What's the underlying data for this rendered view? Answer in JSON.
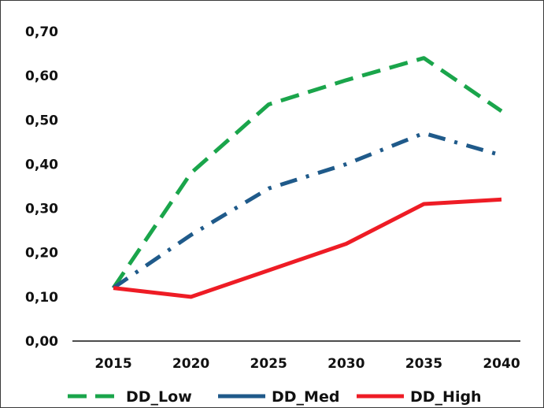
{
  "chart_data": {
    "type": "line",
    "title": "",
    "xlabel": "",
    "ylabel": "",
    "x": [
      "2015",
      "2020",
      "2025",
      "2030",
      "2035",
      "2040"
    ],
    "ylim": [
      0,
      0.7
    ],
    "y_ticks": [
      "0,00",
      "0,10",
      "0,20",
      "0,30",
      "0,40",
      "0,50",
      "0,60",
      "0,70"
    ],
    "grid": false,
    "legend_position": "bottom",
    "series": [
      {
        "name": "DD_Low",
        "values": [
          0.12,
          0.38,
          0.535,
          0.59,
          0.64,
          0.52
        ],
        "color": "#1aa54b",
        "dash": "dashed"
      },
      {
        "name": "DD_Med",
        "values": [
          0.12,
          0.24,
          0.345,
          0.4,
          0.47,
          0.42
        ],
        "color": "#1f5a8a",
        "dash": "dash-dot"
      },
      {
        "name": "DD_High",
        "values": [
          0.12,
          0.1,
          0.16,
          0.22,
          0.31,
          0.32
        ],
        "color": "#ee1c25",
        "dash": "solid"
      }
    ]
  }
}
